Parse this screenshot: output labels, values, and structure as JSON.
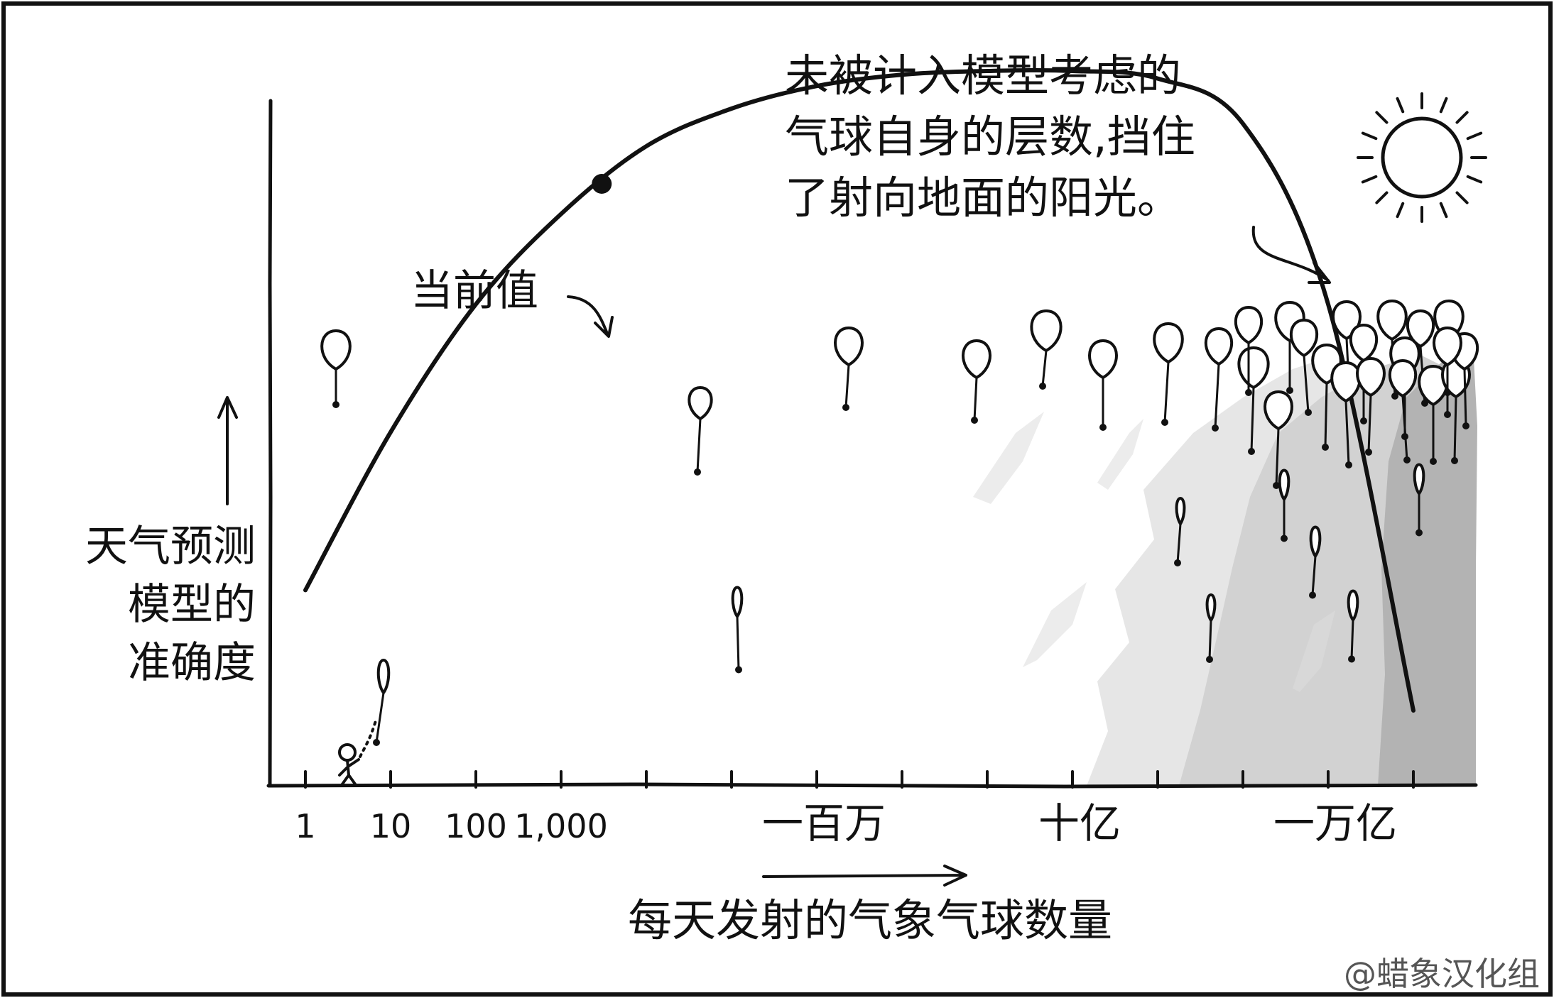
{
  "chart_data": {
    "type": "line",
    "xscale": "log",
    "x_tick_labels": [
      "1",
      "10",
      "100",
      "1,000",
      "一百万",
      "十亿",
      "一万亿"
    ],
    "xlabel": "每天发射的气象气球数量",
    "ylabel_lines": [
      "天气预测",
      "模型的",
      "准确度"
    ],
    "grid": false,
    "legend": "none",
    "series": [
      {
        "x": [
          1,
          10,
          100,
          1000,
          10000,
          100000,
          1000000,
          10000000,
          100000000,
          1000000000,
          10000000000,
          100000000000,
          1000000000000,
          10000000000000
        ],
        "y": [
          0.26,
          0.47,
          0.64,
          0.76,
          0.85,
          0.9,
          0.93,
          0.945,
          0.95,
          0.95,
          0.94,
          0.88,
          0.64,
          0.1
        ]
      }
    ],
    "annotations": {
      "current_value": {
        "label": "当前值",
        "x": 3000,
        "y": 0.8
      },
      "balloon_note": [
        "未被计入模型考虑的",
        "气球自身的层数,挡住",
        "了射向地面的阳光。"
      ]
    }
  },
  "colors": {
    "ink": "#111111",
    "shade_light": "#e4e4e4",
    "shade_mid": "#cdcdcd",
    "shade_dark": "#b0b0b0"
  },
  "icons": [
    "sun-icon",
    "balloon-icon",
    "stick-figure-icon"
  ],
  "credit": "@蜡象汉化组"
}
